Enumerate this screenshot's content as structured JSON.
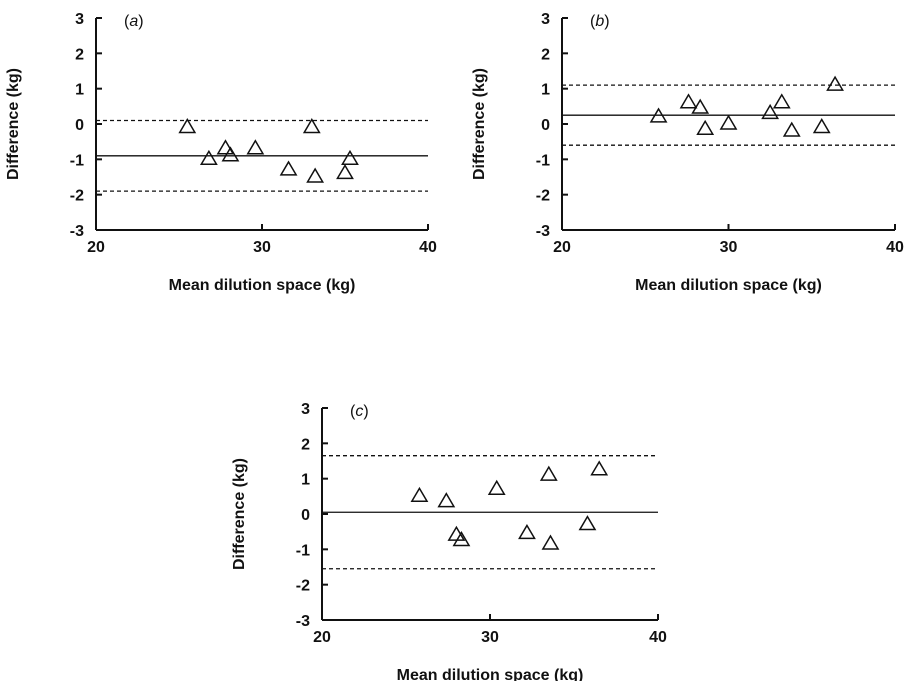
{
  "chart_data": [
    {
      "type": "scatter",
      "panel_label": "a",
      "xlabel": "Mean dilution space (kg)",
      "ylabel": "Difference (kg)",
      "xlim": [
        20,
        40
      ],
      "ylim": [
        -3,
        3
      ],
      "x_ticks": [
        20,
        30,
        40
      ],
      "y_ticks": [
        -3,
        -2,
        -1,
        0,
        1,
        2,
        3
      ],
      "x_tick_labels": [
        "20",
        "30",
        "40"
      ],
      "y_tick_labels": [
        "-3",
        "-2",
        "-1",
        "0",
        "1",
        "2",
        "3"
      ],
      "marker": "open-triangle",
      "mean_difference": -0.9,
      "limits_of_agreement": [
        -1.9,
        0.1
      ],
      "points": [
        {
          "x": 25.5,
          "y": -0.1
        },
        {
          "x": 26.8,
          "y": -1.0
        },
        {
          "x": 27.8,
          "y": -0.7
        },
        {
          "x": 28.1,
          "y": -0.9
        },
        {
          "x": 29.6,
          "y": -0.7
        },
        {
          "x": 31.6,
          "y": -1.3
        },
        {
          "x": 33.0,
          "y": -0.1
        },
        {
          "x": 33.2,
          "y": -1.5
        },
        {
          "x": 35.0,
          "y": -1.4
        },
        {
          "x": 35.3,
          "y": -1.0
        }
      ]
    },
    {
      "type": "scatter",
      "panel_label": "b",
      "xlabel": "Mean dilution space (kg)",
      "ylabel": "Difference (kg)",
      "xlim": [
        20,
        40
      ],
      "ylim": [
        -3,
        3
      ],
      "x_ticks": [
        20,
        30,
        40
      ],
      "y_ticks": [
        -3,
        -2,
        -1,
        0,
        1,
        2,
        3
      ],
      "x_tick_labels": [
        "20",
        "30",
        "40"
      ],
      "y_tick_labels": [
        "-3",
        "-2",
        "-1",
        "0",
        "1",
        "2",
        "3"
      ],
      "marker": "open-triangle",
      "mean_difference": 0.25,
      "limits_of_agreement": [
        -0.6,
        1.1
      ],
      "points": [
        {
          "x": 25.8,
          "y": 0.2
        },
        {
          "x": 27.6,
          "y": 0.6
        },
        {
          "x": 28.3,
          "y": 0.45
        },
        {
          "x": 28.6,
          "y": -0.15
        },
        {
          "x": 30.0,
          "y": 0.0
        },
        {
          "x": 32.5,
          "y": 0.3
        },
        {
          "x": 33.2,
          "y": 0.6
        },
        {
          "x": 33.8,
          "y": -0.2
        },
        {
          "x": 35.6,
          "y": -0.1
        },
        {
          "x": 36.4,
          "y": 1.1
        }
      ]
    },
    {
      "type": "scatter",
      "panel_label": "c",
      "xlabel": "Mean dilution space (kg)",
      "ylabel": "Difference (kg)",
      "xlim": [
        20,
        40
      ],
      "ylim": [
        -3,
        3
      ],
      "x_ticks": [
        20,
        30,
        40
      ],
      "y_ticks": [
        -3,
        -2,
        -1,
        0,
        1,
        2,
        3
      ],
      "x_tick_labels": [
        "20",
        "30",
        "40"
      ],
      "y_tick_labels": [
        "-3",
        "-2",
        "-1",
        "0",
        "1",
        "2",
        "3"
      ],
      "marker": "open-triangle",
      "mean_difference": 0.05,
      "limits_of_agreement": [
        -1.55,
        1.65
      ],
      "points": [
        {
          "x": 25.8,
          "y": 0.5
        },
        {
          "x": 27.4,
          "y": 0.35
        },
        {
          "x": 28.0,
          "y": -0.6
        },
        {
          "x": 28.3,
          "y": -0.75
        },
        {
          "x": 30.4,
          "y": 0.7
        },
        {
          "x": 32.2,
          "y": -0.55
        },
        {
          "x": 33.5,
          "y": 1.1
        },
        {
          "x": 33.6,
          "y": -0.85
        },
        {
          "x": 35.8,
          "y": -0.3
        },
        {
          "x": 36.5,
          "y": 1.25
        }
      ]
    }
  ]
}
